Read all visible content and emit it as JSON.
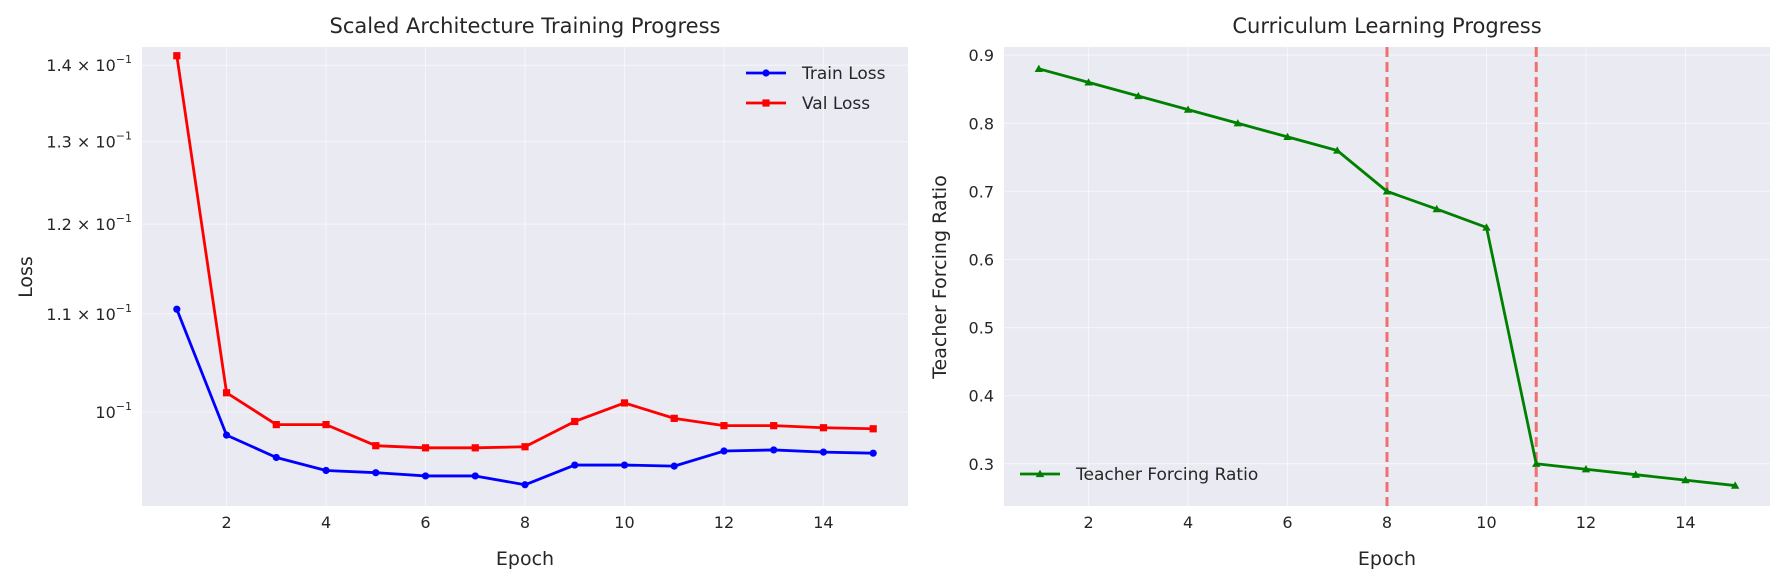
{
  "chart_data": [
    {
      "type": "line",
      "title": "Scaled Architecture Training Progress",
      "xlabel": "Epoch",
      "ylabel": "Loss",
      "yscale": "log",
      "xlim": [
        0.3,
        15.7
      ],
      "ylim": [
        0.0913,
        0.1425
      ],
      "grid": true,
      "legend_position": "top-right",
      "x": [
        1,
        2,
        3,
        4,
        5,
        6,
        7,
        8,
        9,
        10,
        11,
        12,
        13,
        14,
        15
      ],
      "x_ticks": [
        "2",
        "4",
        "6",
        "8",
        "10",
        "12",
        "14"
      ],
      "y_ticks": [
        {
          "value": 0.1,
          "mantissa": "",
          "base": "10",
          "exp": "−1"
        },
        {
          "value": 0.11,
          "mantissa": "1.1 × ",
          "base": "10",
          "exp": "−1"
        },
        {
          "value": 0.12,
          "mantissa": "1.2 × ",
          "base": "10",
          "exp": "−1"
        },
        {
          "value": 0.13,
          "mantissa": "1.3 × ",
          "base": "10",
          "exp": "−1"
        },
        {
          "value": 0.14,
          "mantissa": "1.4 × ",
          "base": "10",
          "exp": "−1"
        }
      ],
      "series": [
        {
          "name": "Train Loss",
          "color": "#0000ff",
          "marker": "circle",
          "values": [
            0.1105,
            0.0978,
            0.0957,
            0.0945,
            0.0943,
            0.094,
            0.094,
            0.0932,
            0.095,
            0.095,
            0.0949,
            0.0963,
            0.0964,
            0.0962,
            0.0961
          ]
        },
        {
          "name": "Val Loss",
          "color": "#ff0000",
          "marker": "square",
          "values": [
            0.1413,
            0.1019,
            0.0988,
            0.0988,
            0.0968,
            0.0966,
            0.0966,
            0.0967,
            0.0991,
            0.1009,
            0.0994,
            0.0987,
            0.0987,
            0.0985,
            0.0984
          ]
        }
      ]
    },
    {
      "type": "line",
      "title": "Curriculum Learning Progress",
      "xlabel": "Epoch",
      "ylabel": "Teacher Forcing Ratio",
      "xlim": [
        0.3,
        15.7
      ],
      "ylim": [
        0.238,
        0.912
      ],
      "grid": true,
      "legend_position": "bottom-left",
      "x": [
        1,
        2,
        3,
        4,
        5,
        6,
        7,
        8,
        9,
        10,
        11,
        12,
        13,
        14,
        15
      ],
      "x_ticks": [
        "2",
        "4",
        "6",
        "8",
        "10",
        "12",
        "14"
      ],
      "y_ticks": [
        "0.3",
        "0.4",
        "0.5",
        "0.6",
        "0.7",
        "0.8",
        "0.9"
      ],
      "vertical_lines": [
        {
          "x": 8,
          "color": "#f07070",
          "style": "dashed"
        },
        {
          "x": 11,
          "color": "#f07070",
          "style": "dashed"
        }
      ],
      "series": [
        {
          "name": "Teacher Forcing Ratio",
          "color": "#008000",
          "marker": "triangle",
          "values": [
            0.88,
            0.86,
            0.84,
            0.82,
            0.8,
            0.78,
            0.76,
            0.7,
            0.674,
            0.647,
            0.3,
            0.292,
            0.284,
            0.276,
            0.268
          ]
        }
      ]
    }
  ]
}
